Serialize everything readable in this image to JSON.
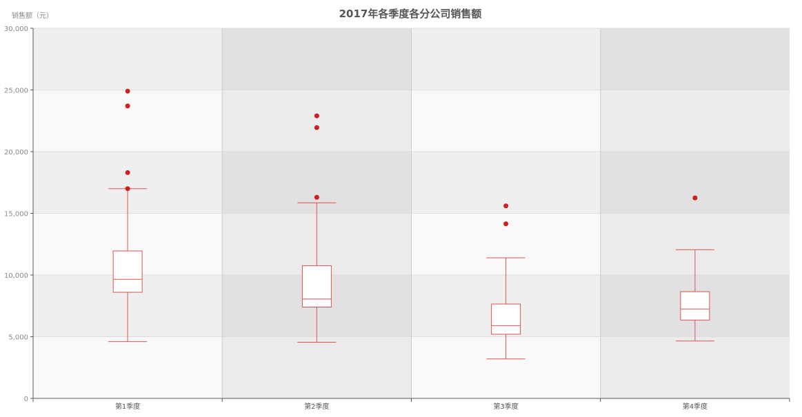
{
  "chart_data": {
    "type": "boxplot",
    "title": "2017年各季度各分公司销售额",
    "ylabel": "销售额（元）",
    "xlabel": "",
    "ylim": [
      0,
      30000
    ],
    "yticks": [
      0,
      5000,
      10000,
      15000,
      20000,
      25000,
      30000
    ],
    "ytick_labels": [
      "0",
      "5,000",
      "10,000",
      "15,000",
      "20,000",
      "25,000",
      "30,000"
    ],
    "categories": [
      "第1季度",
      "第2季度",
      "第3季度",
      "第4季度"
    ],
    "boxes": [
      {
        "min": 4600,
        "q1": 8600,
        "median": 9650,
        "q3": 11950,
        "max": 17000
      },
      {
        "min": 4550,
        "q1": 7400,
        "median": 8050,
        "q3": 10750,
        "max": 15850
      },
      {
        "min": 3200,
        "q1": 5200,
        "median": 5900,
        "q3": 7650,
        "max": 11400
      },
      {
        "min": 4650,
        "q1": 6350,
        "median": 7250,
        "q3": 8650,
        "max": 12050
      }
    ],
    "outliers": [
      [
        0,
        24900
      ],
      [
        0,
        23700
      ],
      [
        0,
        18300
      ],
      [
        0,
        17000
      ],
      [
        1,
        22900
      ],
      [
        1,
        21950
      ],
      [
        1,
        16300
      ],
      [
        2,
        15600
      ],
      [
        2,
        14150
      ],
      [
        3,
        16250
      ]
    ],
    "grid": true,
    "colors": {
      "box": "#d9534f",
      "outlier": "#cc1f1f",
      "band_light": "#f9f9f9",
      "band_dark": "#e3e3e3",
      "axis": "#555555",
      "grid_line": "#dddddd"
    }
  }
}
